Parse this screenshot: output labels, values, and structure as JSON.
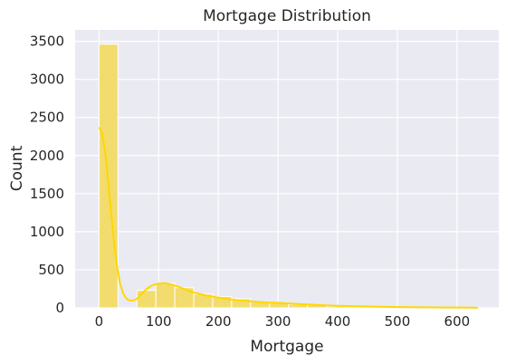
{
  "chart_data": {
    "type": "bar",
    "title": "Mortgage Distribution",
    "xlabel": "Mortgage",
    "ylabel": "Count",
    "xlim": [
      -40,
      670
    ],
    "ylim": [
      0,
      3650
    ],
    "x_ticks": [
      0,
      100,
      200,
      300,
      400,
      500,
      600
    ],
    "y_ticks": [
      0,
      500,
      1000,
      1500,
      2000,
      2500,
      3000,
      3500
    ],
    "grid": true,
    "bins": [
      {
        "x0": 0,
        "x1": 31.8,
        "count": 3462
      },
      {
        "x0": 31.8,
        "x1": 63.5,
        "count": 0
      },
      {
        "x0": 63.5,
        "x1": 95.3,
        "count": 230
      },
      {
        "x0": 95.3,
        "x1": 127.0,
        "count": 320
      },
      {
        "x0": 127.0,
        "x1": 158.8,
        "count": 265
      },
      {
        "x0": 158.8,
        "x1": 190.5,
        "count": 180
      },
      {
        "x0": 190.5,
        "x1": 222.3,
        "count": 150
      },
      {
        "x0": 222.3,
        "x1": 254.0,
        "count": 120
      },
      {
        "x0": 254.0,
        "x1": 285.8,
        "count": 75
      },
      {
        "x0": 285.8,
        "x1": 317.5,
        "count": 65
      },
      {
        "x0": 317.5,
        "x1": 349.3,
        "count": 45
      },
      {
        "x0": 349.3,
        "x1": 381.0,
        "count": 35
      },
      {
        "x0": 381.0,
        "x1": 412.8,
        "count": 20
      },
      {
        "x0": 412.8,
        "x1": 444.5,
        "count": 15
      },
      {
        "x0": 444.5,
        "x1": 476.3,
        "count": 12
      },
      {
        "x0": 476.3,
        "x1": 508.0,
        "count": 8
      },
      {
        "x0": 508.0,
        "x1": 539.8,
        "count": 6
      },
      {
        "x0": 539.8,
        "x1": 571.5,
        "count": 5
      },
      {
        "x0": 571.5,
        "x1": 603.3,
        "count": 3
      },
      {
        "x0": 603.3,
        "x1": 635.0,
        "count": 2
      }
    ],
    "kde": {
      "x": [
        0,
        5,
        10,
        15,
        20,
        25,
        30,
        35,
        40,
        45,
        50,
        55,
        60,
        65,
        70,
        80,
        90,
        100,
        110,
        120,
        130,
        140,
        150,
        160,
        170,
        180,
        190,
        200,
        220,
        240,
        260,
        280,
        300,
        320,
        340,
        360,
        380,
        400,
        420,
        440,
        460,
        480,
        500,
        520,
        540,
        560,
        580,
        600,
        620,
        635
      ],
      "y": [
        2370,
        2300,
        2060,
        1700,
        1280,
        880,
        560,
        330,
        200,
        130,
        100,
        95,
        105,
        130,
        175,
        250,
        300,
        320,
        325,
        310,
        285,
        255,
        225,
        200,
        180,
        162,
        148,
        135,
        112,
        95,
        82,
        72,
        65,
        57,
        48,
        40,
        33,
        27,
        23,
        19,
        16,
        13,
        11,
        9,
        7,
        6,
        5,
        4,
        3,
        2
      ]
    },
    "colors": {
      "bar_fill": "#f2dc6e",
      "bar_edge": "#ffffff",
      "kde_line": "#ffd700",
      "plot_bg": "#eaeaf2",
      "grid": "#ffffff"
    }
  }
}
